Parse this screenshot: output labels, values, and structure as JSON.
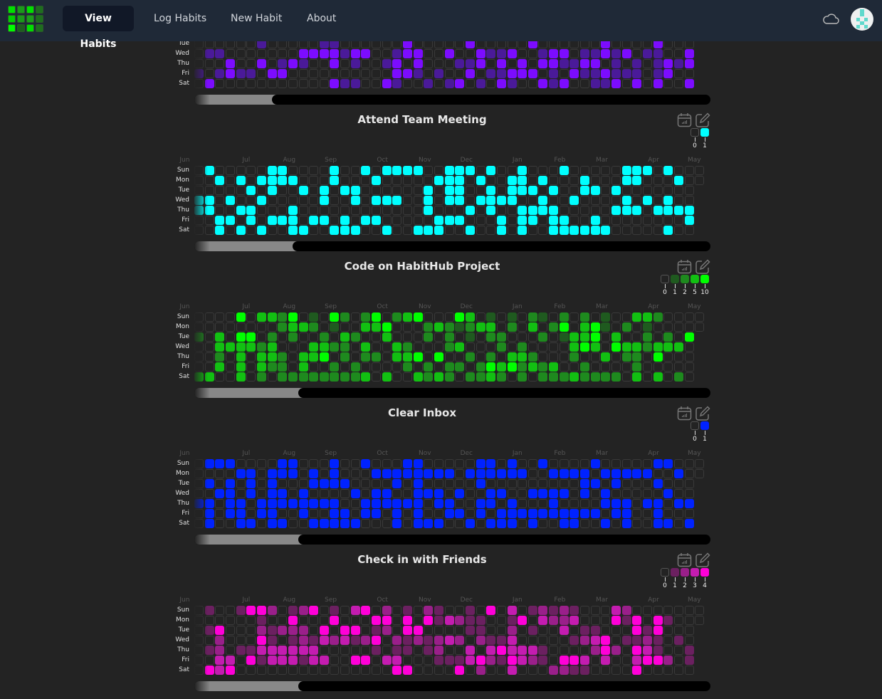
{
  "nav": {
    "items": [
      {
        "label": "View Habits",
        "active": true
      },
      {
        "label": "Log Habits"
      },
      {
        "label": "New Habit"
      },
      {
        "label": "About"
      }
    ],
    "cloud_icon": "cloud-icon",
    "avatar": "avatar"
  },
  "logo_colors": [
    "#00e000",
    "#1a9a1a",
    "#00e000",
    "#1e6e1e",
    "#00d000",
    "#1a9a1a",
    "#1aa01a",
    "#1e6e1e",
    "#00ff00",
    "#1e5e1e",
    "#00e000",
    "#1e6e1e"
  ],
  "day_labels": [
    "Sun",
    "Mon",
    "Tue",
    "Wed",
    "Thu",
    "Fri",
    "Sat"
  ],
  "months": [
    {
      "label": "Jun",
      "week": -1
    },
    {
      "label": "Jul",
      "week": 4.6
    },
    {
      "label": "Aug",
      "week": 8.5
    },
    {
      "label": "Sep",
      "week": 12.5
    },
    {
      "label": "Oct",
      "week": 17.5
    },
    {
      "label": "Nov",
      "week": 21.5
    },
    {
      "label": "Dec",
      "week": 25.5
    },
    {
      "label": "Jan",
      "week": 30.5
    },
    {
      "label": "Feb",
      "week": 34.5
    },
    {
      "label": "Mar",
      "week": 38.5
    },
    {
      "label": "Apr",
      "week": 43.5
    },
    {
      "label": "May",
      "week": 47.3
    }
  ],
  "habits": [
    {
      "title": "",
      "partial": true,
      "scroll_fill": 0.17,
      "colors": [
        "#232323",
        "#4a1a99",
        "#7c0cff"
      ],
      "rows": {
        "Tue": "000000100000110000002000002000002000000200002000",
        "Wed": "011000000022221220012200200211200122011212011002",
        "Thu": "000200201210020100120200011202020221122010101212",
        "Fri": "101211022000000000022101002011222010211211101200",
        "Sat": "020000000000021100210010120102100212001120202002"
      }
    },
    {
      "title": "Attend Team Meeting",
      "scroll_fill": 0.21,
      "legend": [
        "0",
        "1"
      ],
      "colors": [
        "#232323",
        "#00ffff"
      ],
      "rows": {
        "Sun": "0100000110000100101111001110100100010000011101000",
        "Mon": "0010101111000100010000011101001101000100011000100",
        "Tue": "000001010010101100000010110010111010011010000000",
        "Wed": "110100100000100101110010110111100100100001010100",
        "Thu": "110011000100000000000010001010011110000011101111",
        "Fri": "001101011101101011000001110001011011001000000001",
        "Sat": "001010100110011100100111001001010011111100000100"
      }
    },
    {
      "title": "Code on HabitHub Project",
      "scroll_fill": 0.22,
      "legend": [
        "0",
        "1",
        "2",
        "5",
        "10"
      ],
      "colors": [
        "#232323",
        "#1f5a1f",
        "#1e8a1e",
        "#12c012",
        "#00ff00"
      ],
      "rows": {
        "Sun": "0000403324010420240234000430101021020201003320000",
        "Mon": "0000000023320100334000232123302030240341020100000",
        "Tue": "203044020200203200300020201022000201334030020204",
        "Wed": "003333230003322030032000230002020000343043323330",
        "Thu": "002030332033402022033404002020332000200302204000",
        "Fri": "003030322030020200002020220243423230020000200000",
        "Sat": "330030202222222230300323202232020222322220303020"
      }
    },
    {
      "title": "Clear Inbox",
      "scroll_fill": 0.22,
      "legend": [
        "0",
        "1"
      ],
      "colors": [
        "#232323",
        "#0022ff"
      ],
      "rows": {
        "Sun": "0111000011000100100011000001101001000010000011000",
        "Mon": "0000110111010100011111111011111100111101111100100",
        "Tue": "010101010001111000010100000100000000011010001000",
        "Wed": "001101011010000101100111010011001111010100000100",
        "Thu": "110110111111110011111101100110100010000111011011",
        "Fri": "010110110010011011010100110101111111111011001000",
        "Sat": "010011011001111100010111001011101001100101001101"
      }
    },
    {
      "title": "Check in with Friends",
      "scroll_fill": 0.22,
      "legend": [
        "0",
        "1",
        "2",
        "3",
        "4"
      ],
      "colors": [
        "#232323",
        "#6b2060",
        "#9a1f8a",
        "#c41cb0",
        "#ff00d8"
      ],
      "rows": {
        "Sun": "0100144201240103402010210010403012121000320000000",
        "Mon": "0000001004000400044040413211001403223000414041000",
        "Tue": "014000212220404401204400001100201003011000414000",
        "Wed": "002000410121323124021212320211300000123401121010",
        "Thu": "012011333333000001011012003034333100002420431001",
        "Fri": "003304133313300440330001113421432104430300344201",
        "Sat": "043400000000000000044000040200300022110000400000"
      }
    }
  ]
}
